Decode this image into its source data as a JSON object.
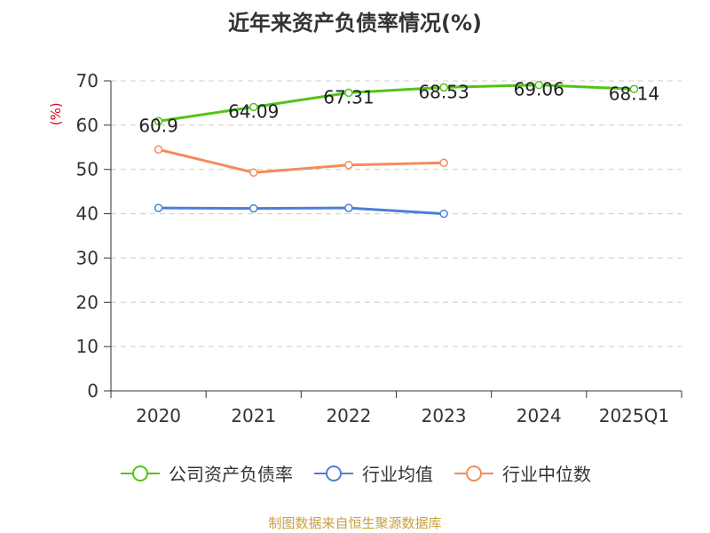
{
  "chart_data": {
    "type": "line",
    "title": "近年来资产负债率情况(%)",
    "ylabel": "(%)",
    "categories": [
      "2020",
      "2021",
      "2022",
      "2023",
      "2024",
      "2025Q1"
    ],
    "ylim": [
      0,
      70
    ],
    "yticks": [
      0,
      10,
      20,
      30,
      40,
      50,
      60,
      70
    ],
    "grid": true,
    "legend_position": "bottom",
    "series": [
      {
        "name": "公司资产负债率",
        "color": "#52c41a",
        "values": [
          60.9,
          64.09,
          67.31,
          68.53,
          69.06,
          68.14
        ],
        "labels": [
          "60.9",
          "64.09",
          "67.31",
          "68.53",
          "69.06",
          "68.14"
        ]
      },
      {
        "name": "行业均值",
        "color": "#4e7fd8",
        "values": [
          41.3,
          41.2,
          41.3,
          40.0,
          null,
          null
        ]
      },
      {
        "name": "行业中位数",
        "color": "#f28c5a",
        "values": [
          54.5,
          49.3,
          51.0,
          51.5,
          null,
          null
        ]
      }
    ]
  },
  "source": "制图数据来自恒生聚源数据库"
}
